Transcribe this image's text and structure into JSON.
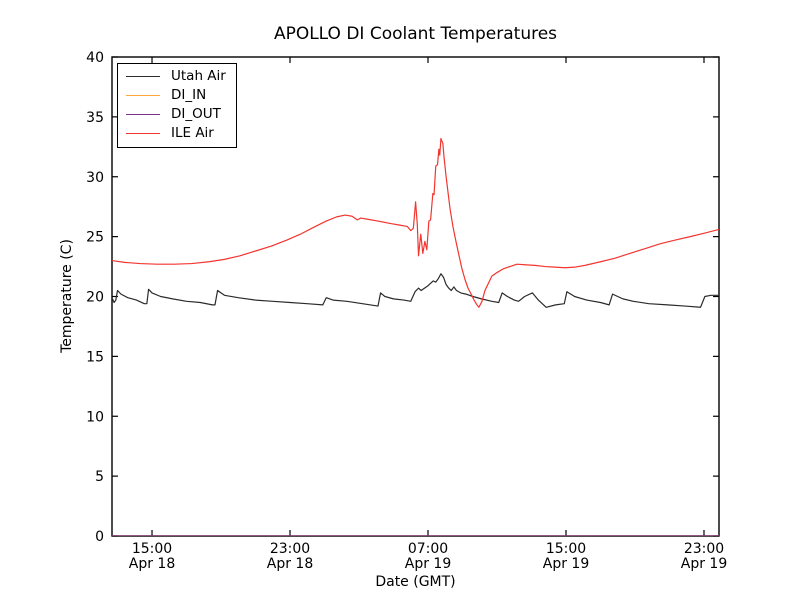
{
  "chart_data": {
    "type": "line",
    "title": "APOLLO DI Coolant Temperatures",
    "xlabel": "Date (GMT)",
    "ylabel": "Temperature (C)",
    "xlim": [
      12.68,
      47.87
    ],
    "ylim": [
      0,
      40
    ],
    "grid": false,
    "legend_position": "upper left",
    "x_unit": "hours since Apr 18 00:00 GMT",
    "x_ticks": [
      {
        "x": 15,
        "time": "15:00",
        "date": "Apr 18"
      },
      {
        "x": 23,
        "time": "23:00",
        "date": "Apr 18"
      },
      {
        "x": 31,
        "time": "07:00",
        "date": "Apr 19"
      },
      {
        "x": 39,
        "time": "15:00",
        "date": "Apr 19"
      },
      {
        "x": 47,
        "time": "23:00",
        "date": "Apr 19"
      }
    ],
    "y_ticks": [
      0,
      5,
      10,
      15,
      20,
      25,
      30,
      35,
      40
    ],
    "series": [
      {
        "name": "Utah Air",
        "color": "#2b2b2b",
        "points": [
          [
            12.68,
            19.9
          ],
          [
            12.8,
            19.5
          ],
          [
            12.9,
            19.7
          ],
          [
            13.0,
            20.5
          ],
          [
            13.2,
            20.2
          ],
          [
            13.6,
            19.9
          ],
          [
            14.1,
            19.7
          ],
          [
            14.55,
            19.4
          ],
          [
            14.7,
            19.4
          ],
          [
            14.8,
            20.6
          ],
          [
            15.0,
            20.3
          ],
          [
            15.5,
            20.0
          ],
          [
            16.2,
            19.8
          ],
          [
            17.0,
            19.6
          ],
          [
            17.8,
            19.5
          ],
          [
            18.5,
            19.3
          ],
          [
            18.65,
            19.3
          ],
          [
            18.8,
            20.5
          ],
          [
            19.2,
            20.1
          ],
          [
            20.0,
            19.9
          ],
          [
            21.0,
            19.7
          ],
          [
            22.0,
            19.6
          ],
          [
            23.0,
            19.5
          ],
          [
            24.0,
            19.4
          ],
          [
            24.9,
            19.3
          ],
          [
            25.1,
            19.9
          ],
          [
            25.5,
            19.7
          ],
          [
            26.3,
            19.6
          ],
          [
            27.2,
            19.4
          ],
          [
            28.1,
            19.2
          ],
          [
            28.25,
            20.3
          ],
          [
            28.5,
            20.0
          ],
          [
            29.0,
            19.8
          ],
          [
            29.6,
            19.7
          ],
          [
            30.0,
            19.6
          ],
          [
            30.25,
            20.4
          ],
          [
            30.45,
            20.7
          ],
          [
            30.6,
            20.5
          ],
          [
            30.8,
            20.7
          ],
          [
            31.0,
            20.9
          ],
          [
            31.15,
            21.1
          ],
          [
            31.3,
            21.3
          ],
          [
            31.45,
            21.2
          ],
          [
            31.6,
            21.5
          ],
          [
            31.75,
            21.9
          ],
          [
            31.9,
            21.6
          ],
          [
            32.05,
            21.0
          ],
          [
            32.2,
            20.7
          ],
          [
            32.35,
            20.5
          ],
          [
            32.5,
            20.8
          ],
          [
            32.65,
            20.5
          ],
          [
            32.9,
            20.3
          ],
          [
            33.2,
            20.2
          ],
          [
            33.6,
            20.0
          ],
          [
            34.1,
            19.8
          ],
          [
            34.7,
            19.6
          ],
          [
            35.1,
            19.5
          ],
          [
            35.3,
            20.3
          ],
          [
            35.6,
            20.0
          ],
          [
            36.0,
            19.7
          ],
          [
            36.25,
            19.6
          ],
          [
            36.6,
            20.0
          ],
          [
            37.05,
            20.3
          ],
          [
            37.4,
            19.7
          ],
          [
            37.85,
            19.1
          ],
          [
            38.4,
            19.3
          ],
          [
            38.9,
            19.4
          ],
          [
            39.05,
            20.4
          ],
          [
            39.5,
            20.0
          ],
          [
            40.2,
            19.7
          ],
          [
            41.0,
            19.5
          ],
          [
            41.5,
            19.3
          ],
          [
            41.7,
            20.2
          ],
          [
            42.3,
            19.8
          ],
          [
            42.9,
            19.6
          ],
          [
            43.8,
            19.4
          ],
          [
            44.9,
            19.3
          ],
          [
            45.9,
            19.2
          ],
          [
            46.8,
            19.1
          ],
          [
            47.05,
            20.0
          ],
          [
            47.4,
            20.1
          ],
          [
            47.87,
            20.1
          ]
        ]
      },
      {
        "name": "DI_IN",
        "color": "#ffa73d",
        "points": [
          [
            12.68,
            0
          ],
          [
            47.87,
            0
          ]
        ]
      },
      {
        "name": "DI_OUT",
        "color": "#7e2f8e",
        "points": [
          [
            12.68,
            0
          ],
          [
            47.87,
            0
          ]
        ]
      },
      {
        "name": "ILE Air",
        "color": "#f3352f",
        "points": [
          [
            12.68,
            23.0
          ],
          [
            13.4,
            22.85
          ],
          [
            14.3,
            22.75
          ],
          [
            15.3,
            22.7
          ],
          [
            16.3,
            22.7
          ],
          [
            17.3,
            22.75
          ],
          [
            18.3,
            22.9
          ],
          [
            19.2,
            23.1
          ],
          [
            20.1,
            23.4
          ],
          [
            21.0,
            23.8
          ],
          [
            21.9,
            24.2
          ],
          [
            22.8,
            24.7
          ],
          [
            23.6,
            25.2
          ],
          [
            24.4,
            25.8
          ],
          [
            25.1,
            26.3
          ],
          [
            25.7,
            26.65
          ],
          [
            26.2,
            26.8
          ],
          [
            26.6,
            26.7
          ],
          [
            26.9,
            26.4
          ],
          [
            27.1,
            26.55
          ],
          [
            27.5,
            26.45
          ],
          [
            28.1,
            26.3
          ],
          [
            28.8,
            26.1
          ],
          [
            29.4,
            25.95
          ],
          [
            29.8,
            25.85
          ],
          [
            30.0,
            25.5
          ],
          [
            30.15,
            25.7
          ],
          [
            30.28,
            27.9
          ],
          [
            30.38,
            26.0
          ],
          [
            30.45,
            23.4
          ],
          [
            30.58,
            25.2
          ],
          [
            30.7,
            23.6
          ],
          [
            30.82,
            24.6
          ],
          [
            30.93,
            23.9
          ],
          [
            31.05,
            26.3
          ],
          [
            31.15,
            26.4
          ],
          [
            31.28,
            28.6
          ],
          [
            31.35,
            28.5
          ],
          [
            31.45,
            30.9
          ],
          [
            31.55,
            31.0
          ],
          [
            31.63,
            32.3
          ],
          [
            31.68,
            31.8
          ],
          [
            31.75,
            33.2
          ],
          [
            31.8,
            33.0
          ],
          [
            31.86,
            32.8
          ],
          [
            31.93,
            31.6
          ],
          [
            32.05,
            30.0
          ],
          [
            32.16,
            28.7
          ],
          [
            32.28,
            27.3
          ],
          [
            32.45,
            25.8
          ],
          [
            32.62,
            24.6
          ],
          [
            32.8,
            23.4
          ],
          [
            32.97,
            22.3
          ],
          [
            33.15,
            21.4
          ],
          [
            33.32,
            20.7
          ],
          [
            33.5,
            20.2
          ],
          [
            33.67,
            19.7
          ],
          [
            33.84,
            19.3
          ],
          [
            33.95,
            19.1
          ],
          [
            34.13,
            19.6
          ],
          [
            34.3,
            20.5
          ],
          [
            34.5,
            21.1
          ],
          [
            34.7,
            21.7
          ],
          [
            35.0,
            22.0
          ],
          [
            35.35,
            22.3
          ],
          [
            35.75,
            22.5
          ],
          [
            36.16,
            22.7
          ],
          [
            36.6,
            22.65
          ],
          [
            37.2,
            22.6
          ],
          [
            37.8,
            22.5
          ],
          [
            38.35,
            22.45
          ],
          [
            38.95,
            22.4
          ],
          [
            39.5,
            22.45
          ],
          [
            40.1,
            22.6
          ],
          [
            41.0,
            22.9
          ],
          [
            41.85,
            23.2
          ],
          [
            42.7,
            23.6
          ],
          [
            43.6,
            24.0
          ],
          [
            44.45,
            24.4
          ],
          [
            45.3,
            24.7
          ],
          [
            46.2,
            25.0
          ],
          [
            47.05,
            25.3
          ],
          [
            47.87,
            25.6
          ]
        ]
      }
    ],
    "axis_color": "#000000",
    "background_color": "#ffffff"
  }
}
